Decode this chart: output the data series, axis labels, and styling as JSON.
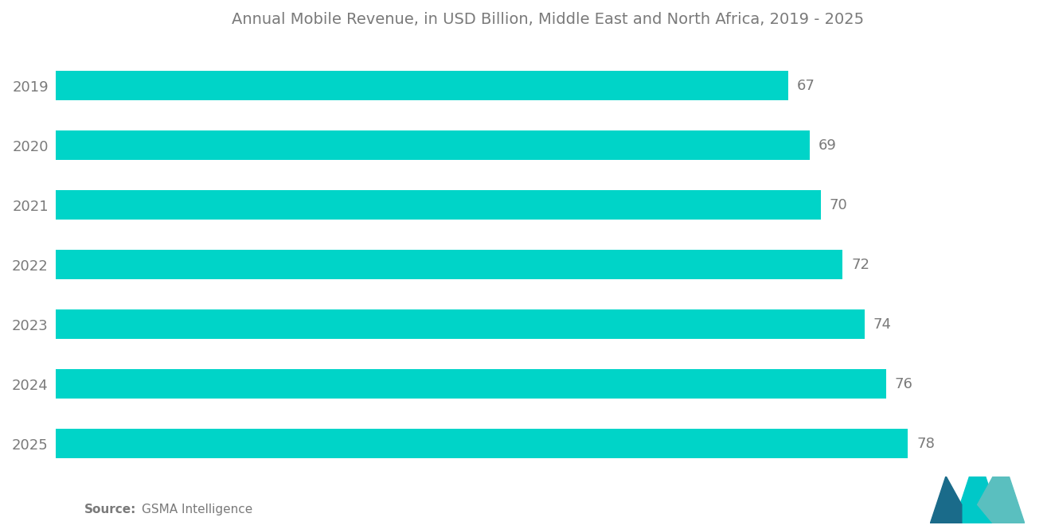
{
  "title": "Annual Mobile Revenue, in USD Billion, Middle East and North Africa, 2019 - 2025",
  "years": [
    "2019",
    "2020",
    "2021",
    "2022",
    "2023",
    "2024",
    "2025"
  ],
  "values": [
    67,
    69,
    70,
    72,
    74,
    76,
    78
  ],
  "bar_color": "#00D4C8",
  "title_color": "#7a7a7a",
  "label_color": "#7a7a7a",
  "value_color": "#7a7a7a",
  "background_color": "#ffffff",
  "source_bold": "Source:",
  "source_text": "GSMA Intelligence",
  "title_fontsize": 14,
  "label_fontsize": 13,
  "value_fontsize": 13,
  "source_fontsize": 11,
  "xlim": [
    0,
    90
  ]
}
